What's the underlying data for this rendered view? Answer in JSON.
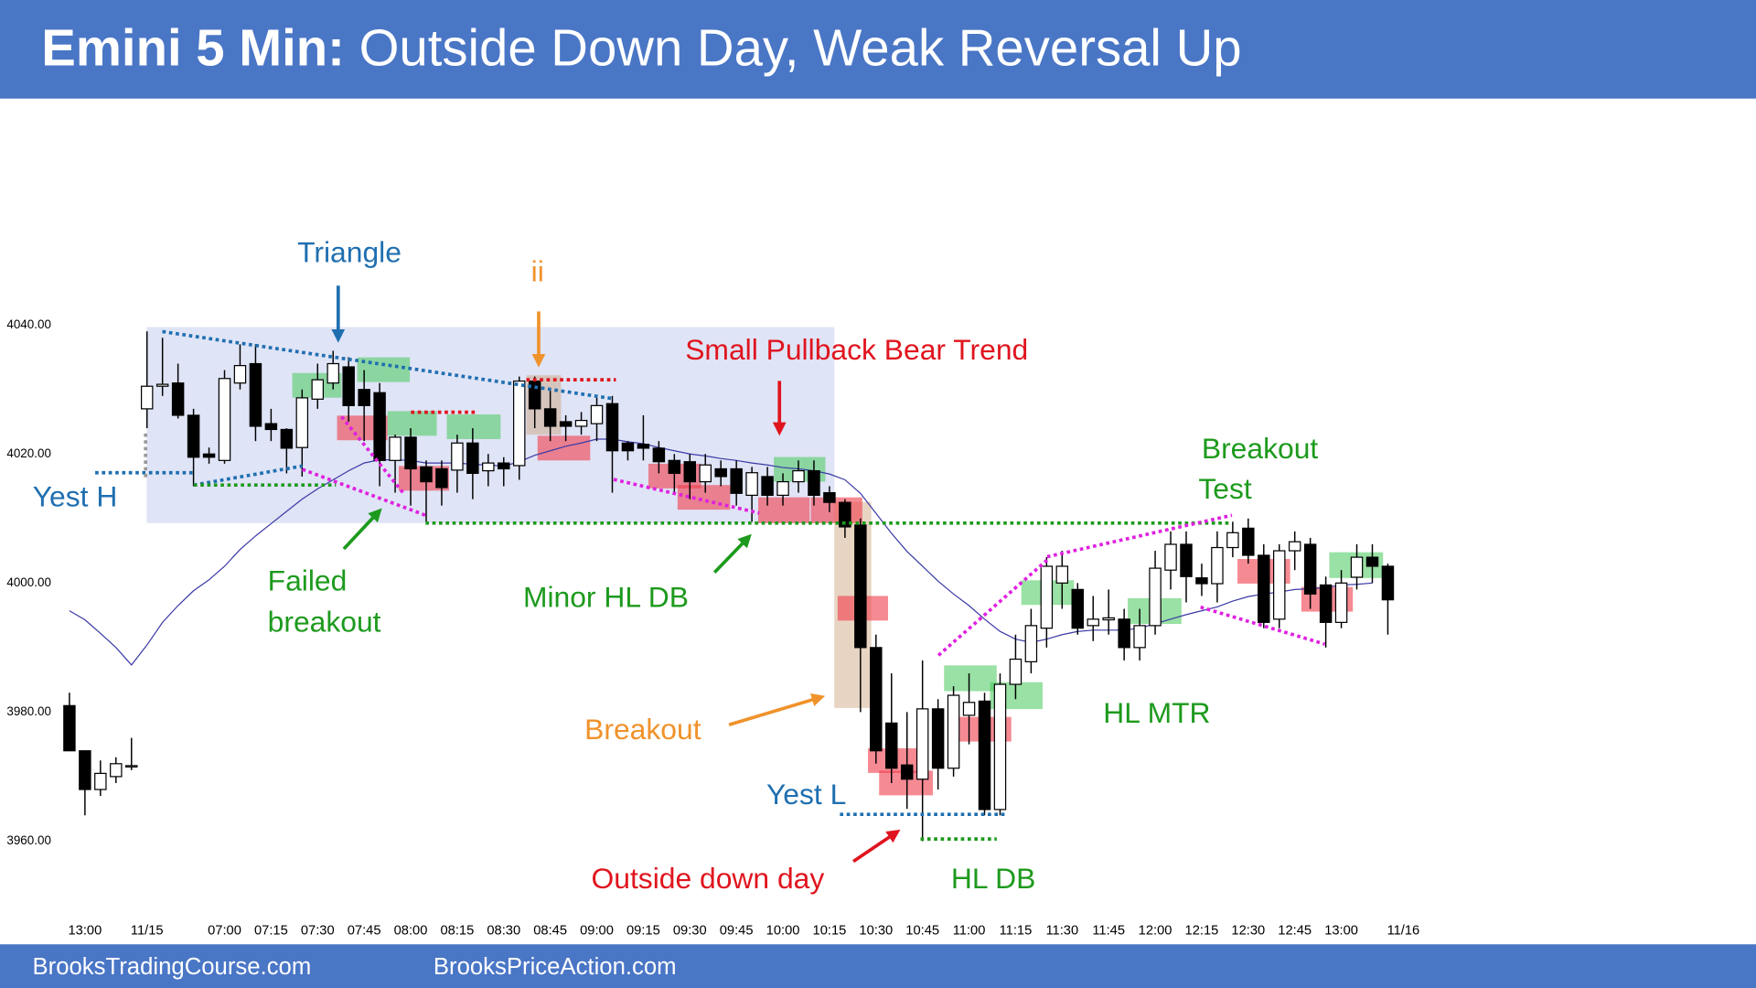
{
  "chart_data": {
    "type": "candlestick",
    "title_prefix": "Emini 5 Min:",
    "title": "Outside Down Day, Weak Reversal Up",
    "footer": [
      "BrooksTradingCourse.com",
      "BrooksPriceAction.com"
    ],
    "ylim": [
      3948,
      4073
    ],
    "yticks": [
      {
        "value": 3960,
        "label": "3960.00"
      },
      {
        "value": 3980,
        "label": "3980.00"
      },
      {
        "value": 4000,
        "label": "4000.00"
      },
      {
        "value": 4020,
        "label": "4020.00"
      },
      {
        "value": 4040,
        "label": "4040.00"
      }
    ],
    "categories": [
      null,
      "13:00",
      null,
      null,
      null,
      "11/15",
      null,
      null,
      null,
      null,
      "07:00",
      null,
      null,
      "07:15",
      null,
      null,
      "07:30",
      null,
      null,
      "07:45",
      null,
      null,
      "08:00",
      null,
      null,
      "08:15",
      null,
      null,
      "08:30",
      null,
      null,
      "08:45",
      null,
      null,
      "09:00",
      null,
      null,
      "09:15",
      null,
      null,
      "09:30",
      null,
      null,
      "09:45",
      null,
      null,
      "10:00",
      null,
      null,
      "10:15",
      null,
      null,
      "10:30",
      null,
      null,
      "10:45",
      null,
      null,
      "11:00",
      null,
      null,
      "11:15",
      null,
      null,
      "11:30",
      null,
      null,
      "11:45",
      null,
      null,
      "12:00",
      null,
      null,
      "12:15",
      null,
      null,
      "12:30",
      null,
      null,
      "12:45",
      null,
      null,
      "13:00",
      null,
      null,
      null,
      "11/16"
    ],
    "open": [
      3981,
      3974,
      3968,
      3970,
      3971.5,
      4027,
      4030.5,
      4031,
      4026,
      4020,
      4019,
      4031,
      4034,
      4024.7,
      4023.8,
      4021,
      4028.5,
      4031,
      4033.5,
      4030,
      4029.5,
      4019,
      4022.6,
      4018,
      4017.7,
      4017.5,
      4021.7,
      4017.4,
      4018.6,
      4018.2,
      4031.3,
      4027,
      4025,
      4024.3,
      4024.7,
      4027.8,
      4021.7,
      4021.5,
      4020.9,
      4019,
      4018.8,
      4015.7,
      4017.7,
      4017.7,
      4013.6,
      4016.5,
      4013.6,
      4015.7,
      4017.4,
      4014,
      4012.5,
      4009,
      3990,
      3978.3,
      3971.8,
      3969.6,
      3980.5,
      3971.3,
      3979.5,
      3981.7,
      3964.9,
      3984.3,
      3987.8,
      3993,
      4000,
      3999,
      3993.4,
      3994.3,
      3994.4,
      3990,
      3993.4,
      4002,
      4006,
      4000.8,
      3999.9,
      4005.5,
      4008.5,
      4004.3,
      3994.4,
      4005,
      4006,
      3999.7,
      3993.9,
      4000.9,
      4004,
      4002.6,
      null
    ],
    "high": [
      3983,
      3974,
      3972.5,
      3973,
      3976,
      4039,
      4038,
      4034,
      4027,
      4021,
      4033,
      4037,
      4037,
      4027,
      4024,
      4030,
      4034,
      4036,
      4035,
      4033,
      4031,
      4023,
      4024,
      4019,
      4019,
      4023,
      4024,
      4020,
      4019.5,
      4032,
      4032,
      4030,
      4026,
      4026.5,
      4029,
      4029,
      4022,
      4026,
      4022,
      4020,
      4020,
      4020,
      4019,
      4019,
      4018,
      4018,
      4017,
      4019,
      4019,
      4015,
      4013,
      4010,
      3992,
      3986,
      3980,
      3988,
      3982,
      3984,
      3986,
      3983,
      3986,
      3992,
      3996,
      4004,
      4005,
      4000,
      3998,
      3999,
      3996,
      3996,
      4005,
      4008,
      4008,
      4003,
      4008,
      4009.5,
      4010,
      4006,
      4006,
      4008,
      4007,
      4001,
      4002,
      4006,
      4006,
      4003,
      null
    ],
    "low": [
      3974,
      3964,
      3967,
      3969,
      3971,
      4024,
      4029,
      4025.5,
      4015,
      4018.5,
      4018.5,
      4030,
      4022,
      4022,
      4017,
      4016.5,
      4027,
      4030,
      4025,
      4022,
      4015,
      4014,
      4012,
      4009.5,
      4012,
      4014,
      4013,
      4015,
      4015,
      4016,
      4024,
      4022,
      4022,
      4023,
      4022,
      4014,
      4019,
      4019,
      4017,
      4014,
      4013,
      4014,
      4015,
      4012,
      4009.5,
      4012,
      4012,
      4014,
      4012,
      4011,
      4007,
      3980,
      3972,
      3969,
      3965,
      3960,
      3968,
      3970,
      3975,
      3964,
      3964,
      3982,
      3986,
      3990,
      3996,
      3992,
      3991,
      3992,
      3988,
      3988,
      3992,
      3999,
      3997,
      3998,
      3997,
      4004,
      4003,
      3993,
      3993,
      4002,
      3996,
      3990,
      3993,
      3999,
      4000,
      3992,
      null
    ],
    "close": [
      3974,
      3968,
      3970.5,
      3972,
      3971.7,
      4030.5,
      4030.8,
      4026,
      4019.5,
      4019.5,
      4031.7,
      4033.7,
      4024.3,
      4023.8,
      4020.9,
      4028.7,
      4031.5,
      4034,
      4027.5,
      4027.5,
      4019,
      4022.6,
      4017.7,
      4015.7,
      4014.8,
      4021.7,
      4017,
      4018.6,
      4017.7,
      4031.3,
      4027,
      4024.3,
      4024.3,
      4025.2,
      4027.5,
      4020.5,
      4020.5,
      4020.9,
      4018.8,
      4017,
      4015.7,
      4018.3,
      4016.5,
      4013.9,
      4017.1,
      4013.6,
      4015.7,
      4017.4,
      4013.6,
      4012.5,
      4008.7,
      3990,
      3974,
      3971.3,
      3969.6,
      3980.5,
      3971.3,
      3982.6,
      3981.5,
      3964.9,
      3984.3,
      3988.2,
      3993.4,
      4002.6,
      4002.6,
      3993,
      3994.4,
      3994.6,
      3990,
      3993.4,
      4002.3,
      4006,
      4001,
      3999.9,
      4005.5,
      4007.8,
      4004.3,
      3993.9,
      4005,
      4006.4,
      3998.3,
      3993.9,
      4000,
      4004,
      4002.6,
      3997.4,
      null
    ],
    "ma": {
      "color": "#3b3ba6",
      "values": [
        3995.7,
        3994.3,
        3992.2,
        3990,
        3987.3,
        3990.4,
        3993.9,
        3996.5,
        3998.8,
        4000.5,
        4002.6,
        4005.2,
        4007.3,
        4009.2,
        4011.1,
        4013,
        4014.6,
        4016,
        4017.4,
        4018.6,
        4019.1,
        4019.1,
        4019,
        4018.6,
        4018.6,
        4018.6,
        4018.4,
        4018.3,
        4018.1,
        4018.8,
        4019.8,
        4020.5,
        4021.2,
        4021.7,
        4022.3,
        4022.3,
        4021.9,
        4021.6,
        4021,
        4020.5,
        4020,
        4019.7,
        4019.3,
        4019,
        4018.6,
        4018.3,
        4017.9,
        4017.7,
        4017.4,
        4016.9,
        4016,
        4013.9,
        4010.8,
        4007.7,
        4004.9,
        4002.6,
        4000.3,
        3998.3,
        3996.5,
        3994.4,
        3992.5,
        3991.3,
        3990.8,
        3991.3,
        3992,
        3992.5,
        3992.7,
        3992.7,
        3992.7,
        3993,
        3993.7,
        3994.4,
        3995.1,
        3995.7,
        3996.3,
        3997.2,
        3997.9,
        3998.3,
        3998.6,
        3999,
        3999.1,
        3999.3,
        3999.7,
        3999.8,
        4000,
        null,
        null
      ]
    },
    "annotations": [
      "Triangle",
      "ii",
      "Small Pullback Bear Trend",
      "Breakout",
      "Test",
      "Yest H",
      "Failed",
      "breakout",
      "Minor HL DB",
      "Breakout",
      "HL MTR",
      "Yest L",
      "Outside down day",
      "HL DB"
    ]
  }
}
